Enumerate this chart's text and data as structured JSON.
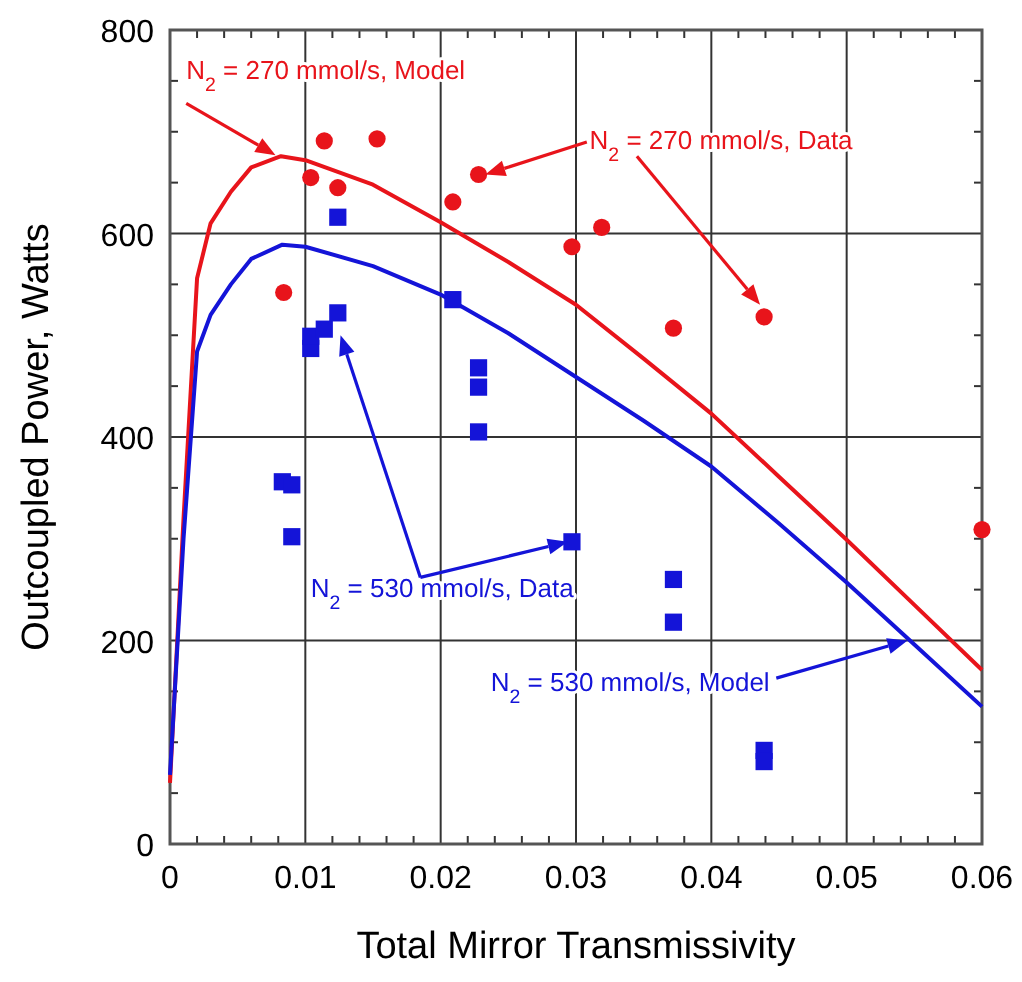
{
  "chart_data": {
    "type": "scatter",
    "xlabel": "Total Mirror Transmissivity",
    "ylabel": "Outcoupled Power, Watts",
    "xlim": [
      0,
      0.06
    ],
    "xticks": [
      0,
      0.01,
      0.02,
      0.03,
      0.04,
      0.05,
      0.06
    ],
    "ylim": [
      0,
      800
    ],
    "yticks": [
      0,
      200,
      400,
      600,
      800
    ],
    "grid": true,
    "series": [
      {
        "type": "line",
        "color": "#e8141b",
        "marker": "none",
        "line_style": "solid",
        "x": [
          0,
          0.001,
          0.002,
          0.003,
          0.0045,
          0.006,
          0.0082,
          0.01,
          0.015,
          0.02,
          0.025,
          0.03,
          0.035,
          0.04,
          0.045,
          0.05,
          0.055,
          0.06
        ],
        "values": [
          60,
          320,
          556,
          610,
          641,
          665,
          676,
          672,
          648,
          611,
          572,
          530,
          477,
          423,
          361,
          299,
          235,
          171
        ]
      },
      {
        "type": "line",
        "color": "#1414d8",
        "marker": "none",
        "line_style": "solid",
        "x": [
          0,
          0.001,
          0.002,
          0.003,
          0.0045,
          0.006,
          0.0083,
          0.01,
          0.015,
          0.02,
          0.025,
          0.03,
          0.035,
          0.04,
          0.045,
          0.05,
          0.055,
          0.06
        ],
        "values": [
          68,
          300,
          484,
          520,
          550,
          575,
          589,
          587,
          568,
          540,
          502,
          459,
          416,
          371,
          315,
          257,
          196,
          135
        ]
      },
      {
        "color": "#e8141b",
        "marker": "circle",
        "x": [
          0.0084,
          0.0104,
          0.0114,
          0.0124,
          0.0153,
          0.0209,
          0.0228,
          0.0297,
          0.0319,
          0.0372,
          0.0439,
          0.06
        ],
        "values": [
          542,
          655,
          691,
          645,
          693,
          631,
          658,
          587,
          606,
          507,
          518,
          309
        ]
      },
      {
        "color": "#1414d8",
        "marker": "square",
        "x": [
          0.0083,
          0.009,
          0.009,
          0.0104,
          0.0104,
          0.0114,
          0.0124,
          0.0124,
          0.0209,
          0.0228,
          0.0228,
          0.0228,
          0.0297,
          0.0372,
          0.0372,
          0.0439,
          0.0439
        ],
        "values": [
          356,
          353,
          302,
          487,
          499,
          506,
          522,
          616,
          535,
          468,
          449,
          405,
          297,
          260,
          218,
          92,
          81
        ]
      }
    ],
    "annotations": [
      {
        "text": "N$_{2}$ = 270 mmol/s, Model",
        "x": 0.0078,
        "y": 677
      },
      "N$_{2}$ = 270 mmol/s, Data",
      {
        "text": "N$_{2}$ = 530 mmol/s, Data",
        "x": 0.0294,
        "y": 297
      },
      "N$_{2}$ = 530 mmol/s, Model"
    ]
  }
}
